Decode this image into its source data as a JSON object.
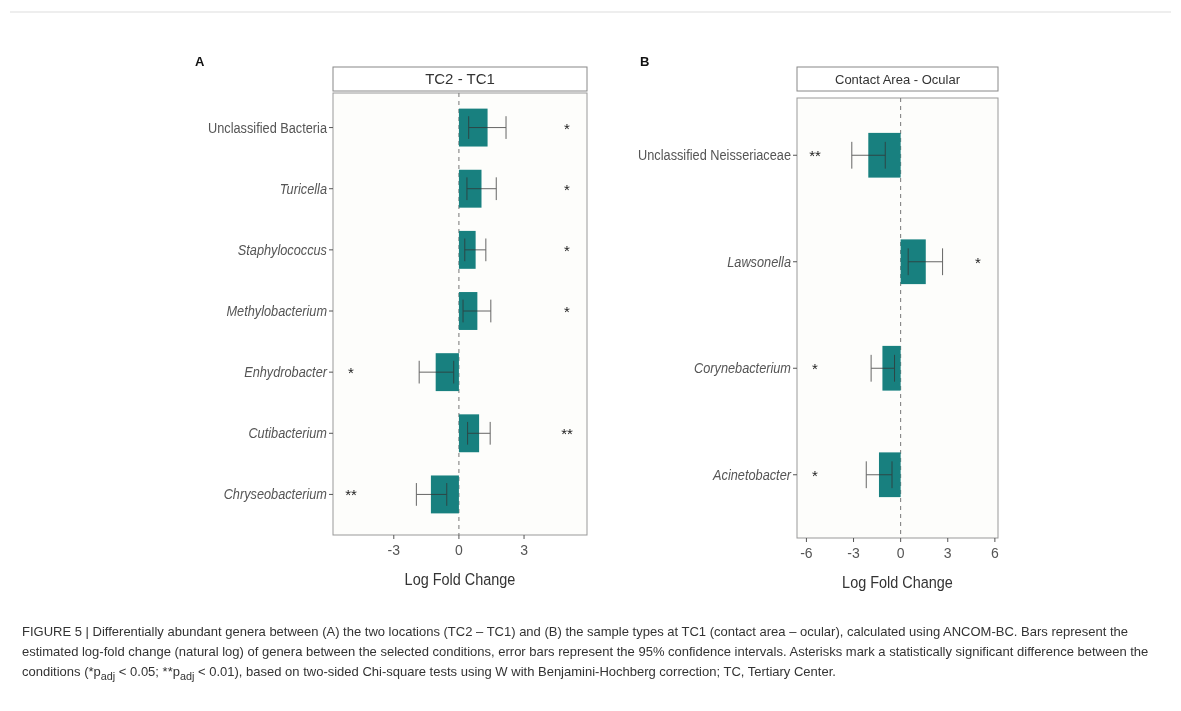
{
  "chart_data": [
    {
      "type": "bar",
      "orientation": "horizontal",
      "title": "TC2 - TC1",
      "xlabel": "Log Fold Change",
      "categories": [
        "Unclassified Bacteria",
        "Turicella",
        "Staphylococcus",
        "Methylobacterium",
        "Enhydrobacter",
        "Cutibacterium",
        "Chryseobacterium"
      ],
      "values": [
        1.32,
        1.04,
        0.77,
        0.85,
        -1.07,
        0.93,
        -1.29
      ],
      "errors": [
        [
          0.45,
          2.17
        ],
        [
          0.37,
          1.72
        ],
        [
          0.27,
          1.24
        ],
        [
          0.19,
          1.47
        ],
        [
          -1.83,
          -0.24
        ],
        [
          0.4,
          1.44
        ],
        [
          -1.96,
          -0.56
        ]
      ],
      "color": "#18807f",
      "xlim": [
        -5.8,
        5.9
      ],
      "xticks": [
        -3,
        0,
        3
      ],
      "grid": false,
      "ref_lines": [
        {
          "axis": "x",
          "value": 0,
          "line_style": "dashed"
        }
      ],
      "annotations": [
        "A",
        "*",
        "*",
        "*",
        "*",
        "*",
        "**",
        "**",
        "FIGURE 5 | Differentially abundant genera between (A) the two locations (TC2 – TC1) and (B) the sample types at TC1 (contact area – ocular), calculated using ANCOM-BC. Bars represent the estimated log-fold change (natural log) of genera between the selected conditions, error bars represent the 95% confidence intervals. Asterisks mark a statistically significant difference between the conditions (*p$_{adj}$ < 0.05; **p$_{adj}$ < 0.01), based on two-sided Chi-square tests using W with Benjamini-Hochberg correction; TC, Tertiary Center."
      ]
    },
    {
      "type": "bar",
      "orientation": "horizontal",
      "title": "Contact Area - Ocular",
      "xlabel": "Log Fold Change",
      "categories": [
        "Unclassified Neisseriaceae",
        "Lawsonella",
        "Corynebacterium",
        "Acinetobacter"
      ],
      "values": [
        -2.06,
        1.6,
        -1.16,
        -1.38
      ],
      "errors": [
        [
          -3.11,
          -0.98
        ],
        [
          0.48,
          2.67
        ],
        [
          -1.88,
          -0.39
        ],
        [
          -2.19,
          -0.55
        ]
      ],
      "color": "#18807f",
      "xlim": [
        -6.6,
        6.2
      ],
      "xticks": [
        -6,
        -3,
        0,
        3,
        6
      ],
      "grid": false,
      "ref_lines": [
        {
          "axis": "x",
          "value": 0,
          "line_style": "dashed"
        }
      ],
      "annotations": [
        "B",
        "**",
        "*",
        "*",
        "*"
      ]
    }
  ]
}
